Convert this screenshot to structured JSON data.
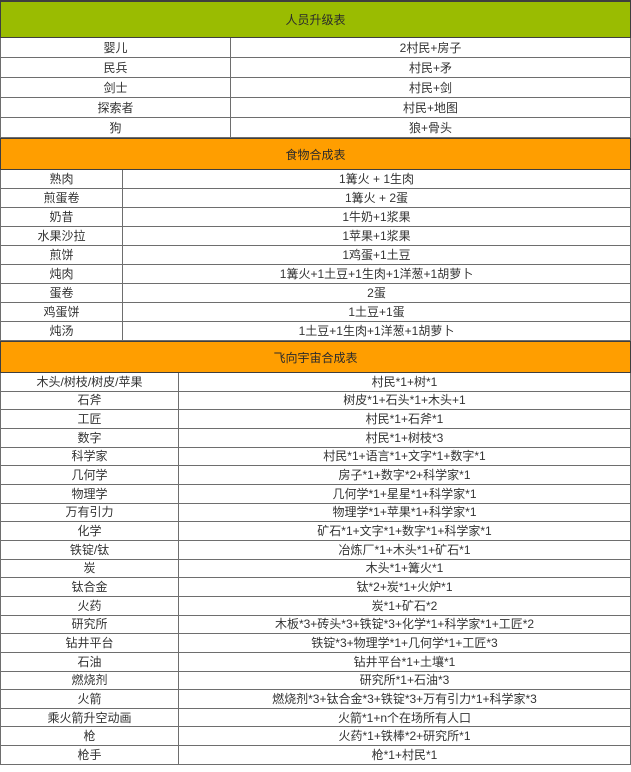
{
  "colors": {
    "green_header": "#9abc01",
    "orange_header": "#ff9e00",
    "header_border": "#3f3f3f",
    "cell_border": "#6e6e6e",
    "text": "#333333",
    "row_background": "#ffffff"
  },
  "tables": [
    {
      "id": "personnel-upgrade",
      "title": "人员升级表",
      "header_color": "#9abc01",
      "rows": [
        [
          "婴儿",
          "2村民+房子"
        ],
        [
          "民兵",
          "村民+矛"
        ],
        [
          "剑士",
          "村民+剑"
        ],
        [
          "探索者",
          "村民+地图"
        ],
        [
          "狗",
          "狼+骨头"
        ]
      ]
    },
    {
      "id": "food-synthesis",
      "title": "食物合成表",
      "header_color": "#ff9e00",
      "rows": [
        [
          "熟肉",
          "1篝火 + 1生肉"
        ],
        [
          "煎蛋卷",
          "1篝火 + 2蛋"
        ],
        [
          "奶昔",
          "1牛奶+1浆果"
        ],
        [
          "水果沙拉",
          "1苹果+1浆果"
        ],
        [
          "煎饼",
          "1鸡蛋+1土豆"
        ],
        [
          "炖肉",
          "1篝火+1土豆+1生肉+1洋葱+1胡萝卜"
        ],
        [
          "蛋卷",
          "2蛋"
        ],
        [
          "鸡蛋饼",
          "1土豆+1蛋"
        ],
        [
          "炖汤",
          "1土豆+1生肉+1洋葱+1胡萝卜"
        ]
      ]
    },
    {
      "id": "fly-to-universe-synthesis",
      "title": "飞向宇宙合成表",
      "header_color": "#ff9e00",
      "rows": [
        [
          "木头/树枝/树皮/苹果",
          "村民*1+树*1"
        ],
        [
          "石斧",
          "树皮*1+石头*1+木头+1"
        ],
        [
          "工匠",
          "村民*1+石斧*1"
        ],
        [
          "数字",
          "村民*1+树枝*3"
        ],
        [
          "科学家",
          "村民*1+语言*1+文字*1+数字*1"
        ],
        [
          "几何学",
          "房子*1+数字*2+科学家*1"
        ],
        [
          "物理学",
          "几何学*1+星星*1+科学家*1"
        ],
        [
          "万有引力",
          "物理学*1+苹果*1+科学家*1"
        ],
        [
          "化学",
          "矿石*1+文字*1+数字*1+科学家*1"
        ],
        [
          "铁锭/钛",
          "冶炼厂*1+木头*1+矿石*1"
        ],
        [
          "炭",
          "木头*1+篝火*1"
        ],
        [
          "钛合金",
          "钛*2+炭*1+火炉*1"
        ],
        [
          "火药",
          "炭*1+矿石*2"
        ],
        [
          "研究所",
          "木板*3+砖头*3+铁锭*3+化学*1+科学家*1+工匠*2"
        ],
        [
          "钻井平台",
          "铁锭*3+物理学*1+几何学*1+工匠*3"
        ],
        [
          "石油",
          "钻井平台*1+土壤*1"
        ],
        [
          "燃烧剂",
          "研究所*1+石油*3"
        ],
        [
          "火箭",
          "燃烧剂*3+钛合金*3+铁锭*3+万有引力*1+科学家*3"
        ],
        [
          "乘火箭升空动画",
          "火箭*1+n个在场所有人口"
        ],
        [
          "枪",
          "火药*1+铁棒*2+研究所*1"
        ],
        [
          "枪手",
          "枪*1+村民*1"
        ]
      ]
    }
  ]
}
